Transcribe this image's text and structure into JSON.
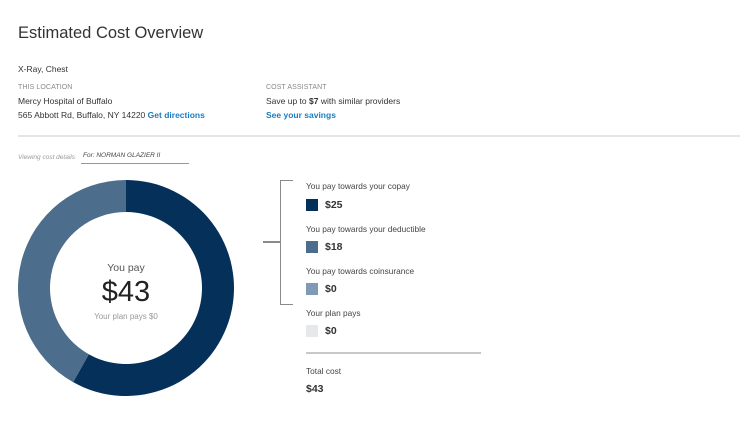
{
  "header": {
    "title": "Estimated Cost Overview",
    "procedure": "X-Ray, Chest"
  },
  "location": {
    "label": "THIS LOCATION",
    "name": "Mercy Hospital of Buffalo",
    "address": "565 Abbott Rd, Buffalo, NY 14220",
    "directions_link": "Get directions"
  },
  "cost_assistant": {
    "label": "COST ASSISTANT",
    "text_prefix": "Save up to",
    "amount": "$7",
    "text_suffix": "with similar providers",
    "savings_link": "See your savings"
  },
  "viewing": {
    "label": "Viewing cost details",
    "for_value": "For: NORMAN GLAZIER II"
  },
  "colors": {
    "copay": "#04305a",
    "deductible": "#4c6d8b",
    "coinsurance": "#7f9ab4",
    "plan": "#e6e8ea",
    "link": "#1a7cc0"
  },
  "chart_data": {
    "type": "pie",
    "variant": "donut",
    "center": {
      "label": "You pay",
      "value": "$43",
      "sublabel": "Your plan pays $0"
    },
    "categories": [
      "You pay towards your copay",
      "You pay towards your deductible",
      "You pay towards coinsurance",
      "Your plan pays"
    ],
    "values": [
      25,
      18,
      0,
      0
    ],
    "value_labels": [
      "$25",
      "$18",
      "$0",
      "$0"
    ],
    "total": 43
  },
  "summary": {
    "total_label": "Total cost",
    "total_value": "$43"
  }
}
